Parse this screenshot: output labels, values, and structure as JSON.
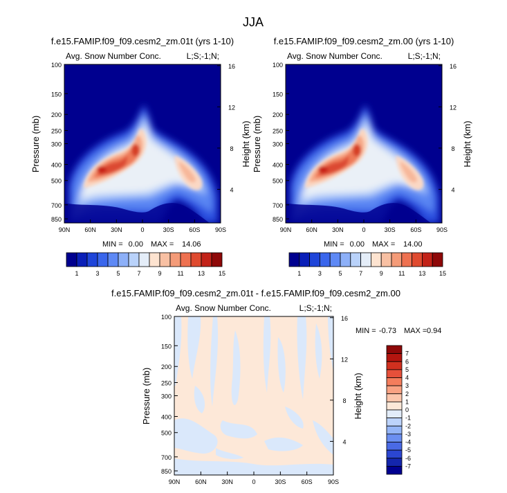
{
  "page_title": "JJA",
  "chart_data": [
    {
      "type": "heatmap",
      "title": "f.e15.FAMIP.f09_f09.cesm2_zm.01t (yrs 1-10)",
      "left_string": "Avg. Snow Number Conc.",
      "right_string": "L;S;-1;N;",
      "ylabel": "Pressure (mb)",
      "ylabel_right": "Height (km)",
      "x_ticks": [
        "90N",
        "60N",
        "30N",
        "0",
        "30S",
        "60S",
        "90S"
      ],
      "y_ticks": [
        "100",
        "150",
        "200",
        "250",
        "300",
        "400",
        "500",
        "700",
        "850"
      ],
      "y_ticks_right": [
        "16",
        "12",
        "8",
        "4"
      ],
      "min_label": "MIN =",
      "min": "0.00",
      "max_label": "MAX =",
      "max": "14.06",
      "colorbar_labels": [
        "1",
        "3",
        "5",
        "7",
        "9",
        "11",
        "13",
        "15"
      ],
      "features": [
        {
          "lat": 42,
          "p": 440,
          "value": 14
        },
        {
          "lat": 13,
          "p": 320,
          "value": 13
        },
        {
          "lat": -40,
          "p": 420,
          "value": 8
        }
      ]
    },
    {
      "type": "heatmap",
      "title": "f.e15.FAMIP.f09_f09.cesm2_zm.00 (yrs 1-10)",
      "left_string": "Avg. Snow Number Conc.",
      "right_string": "L;S;-1;N;",
      "ylabel": "Pressure (mb)",
      "ylabel_right": "Height (km)",
      "x_ticks": [
        "90N",
        "60N",
        "30N",
        "0",
        "30S",
        "60S",
        "90S"
      ],
      "y_ticks": [
        "100",
        "150",
        "200",
        "250",
        "300",
        "400",
        "500",
        "700",
        "850"
      ],
      "y_ticks_right": [
        "16",
        "12",
        "8",
        "4"
      ],
      "min_label": "MIN =",
      "min": "0.00",
      "max_label": "MAX =",
      "max": "14.00",
      "colorbar_labels": [
        "1",
        "3",
        "5",
        "7",
        "9",
        "11",
        "13",
        "15"
      ],
      "features": [
        {
          "lat": 42,
          "p": 440,
          "value": 14
        },
        {
          "lat": 13,
          "p": 320,
          "value": 13
        },
        {
          "lat": -40,
          "p": 420,
          "value": 8
        }
      ]
    },
    {
      "type": "heatmap",
      "title": "f.e15.FAMIP.f09_f09.cesm2_zm.01t - f.e15.FAMIP.f09_f09.cesm2_zm.00",
      "left_string": "Avg. Snow Number Conc.",
      "right_string": "L;S;-1;N;",
      "ylabel": "Pressure (mb)",
      "ylabel_right": "Height (km)",
      "x_ticks": [
        "90N",
        "60N",
        "30N",
        "0",
        "30S",
        "60S",
        "90S"
      ],
      "y_ticks": [
        "100",
        "150",
        "200",
        "250",
        "300",
        "400",
        "500",
        "700",
        "850"
      ],
      "y_ticks_right": [
        "16",
        "12",
        "8",
        "4"
      ],
      "min_label": "MIN =",
      "min": "-0.73",
      "max_label": "MAX =",
      "max": "0.94",
      "colorbar_labels": [
        "7",
        "6",
        "5",
        "4",
        "3",
        "2",
        "1",
        "0",
        "-1",
        "-2",
        "-3",
        "-4",
        "-5",
        "-6",
        "-7"
      ]
    }
  ],
  "colors": {
    "abs_levels": [
      "#00008f",
      "#0a1fb8",
      "#1f45d9",
      "#3a66ec",
      "#5e89f5",
      "#8db0f8",
      "#b9d2fa",
      "#e4edf8",
      "#fde3d0",
      "#f8c0a3",
      "#f49b78",
      "#ee7150",
      "#df4a2f",
      "#c22218",
      "#8e0808"
    ],
    "diff_levels": [
      "#8e0808",
      "#b3150f",
      "#d1301f",
      "#e6503a",
      "#f47d5c",
      "#f9a283",
      "#fcc6ac",
      "#fde8d8",
      "#e2ecf9",
      "#bcd3fb",
      "#94b5f7",
      "#6b8ff1",
      "#4a6ae5",
      "#2b46d1",
      "#1426ad",
      "#000090"
    ]
  }
}
